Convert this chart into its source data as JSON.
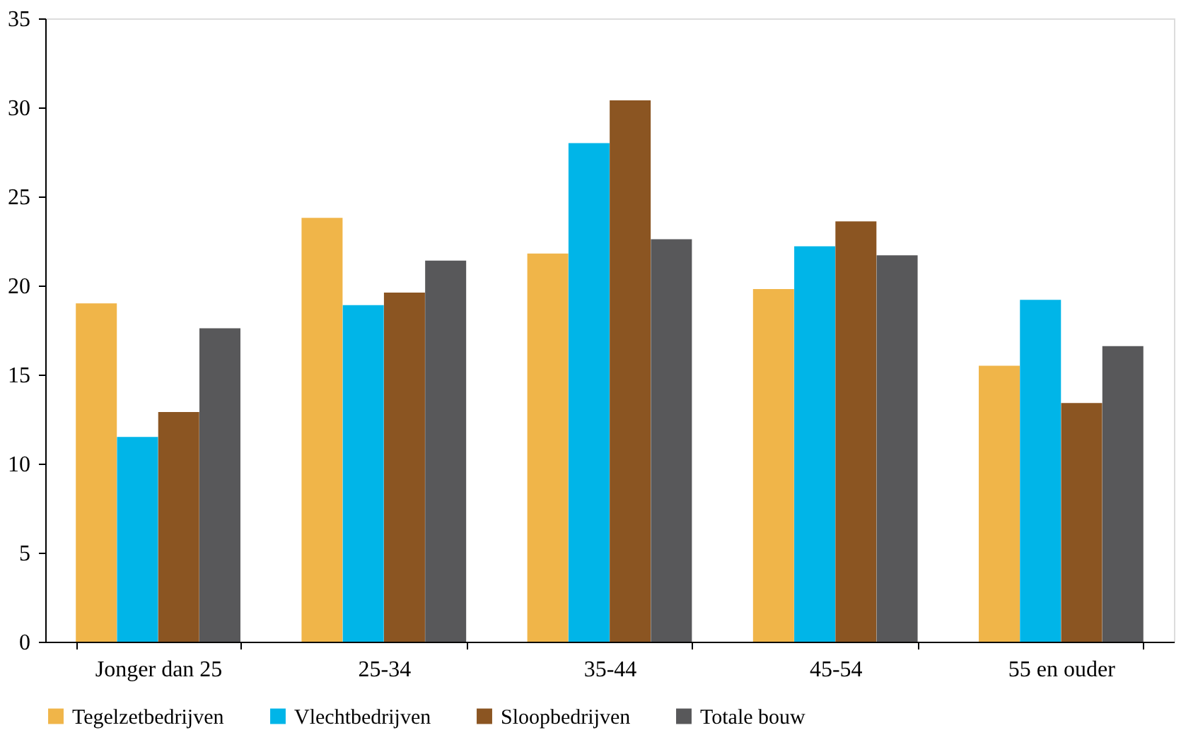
{
  "chart_data": {
    "type": "bar",
    "categories": [
      "Jonger dan 25",
      "25-34",
      "35-44",
      "45-54",
      "55 en ouder"
    ],
    "series": [
      {
        "name": "Tegelzetbedrijven",
        "color": "#f0b549",
        "values": [
          19.0,
          23.8,
          21.8,
          19.8,
          15.5
        ]
      },
      {
        "name": "Vlechtbedrijven",
        "color": "#00b5e8",
        "values": [
          11.5,
          18.9,
          28.0,
          22.2,
          19.2
        ]
      },
      {
        "name": "Sloopbedrijven",
        "color": "#8b5522",
        "values": [
          12.9,
          19.6,
          30.4,
          23.6,
          13.4
        ]
      },
      {
        "name": "Totale bouw",
        "color": "#58585a",
        "values": [
          17.6,
          21.4,
          22.6,
          21.7,
          16.6
        ]
      }
    ],
    "ylim": [
      0,
      35
    ],
    "yticks": [
      0,
      5,
      10,
      15,
      20,
      25,
      30,
      35
    ],
    "grid": false,
    "legend": "bottom"
  }
}
